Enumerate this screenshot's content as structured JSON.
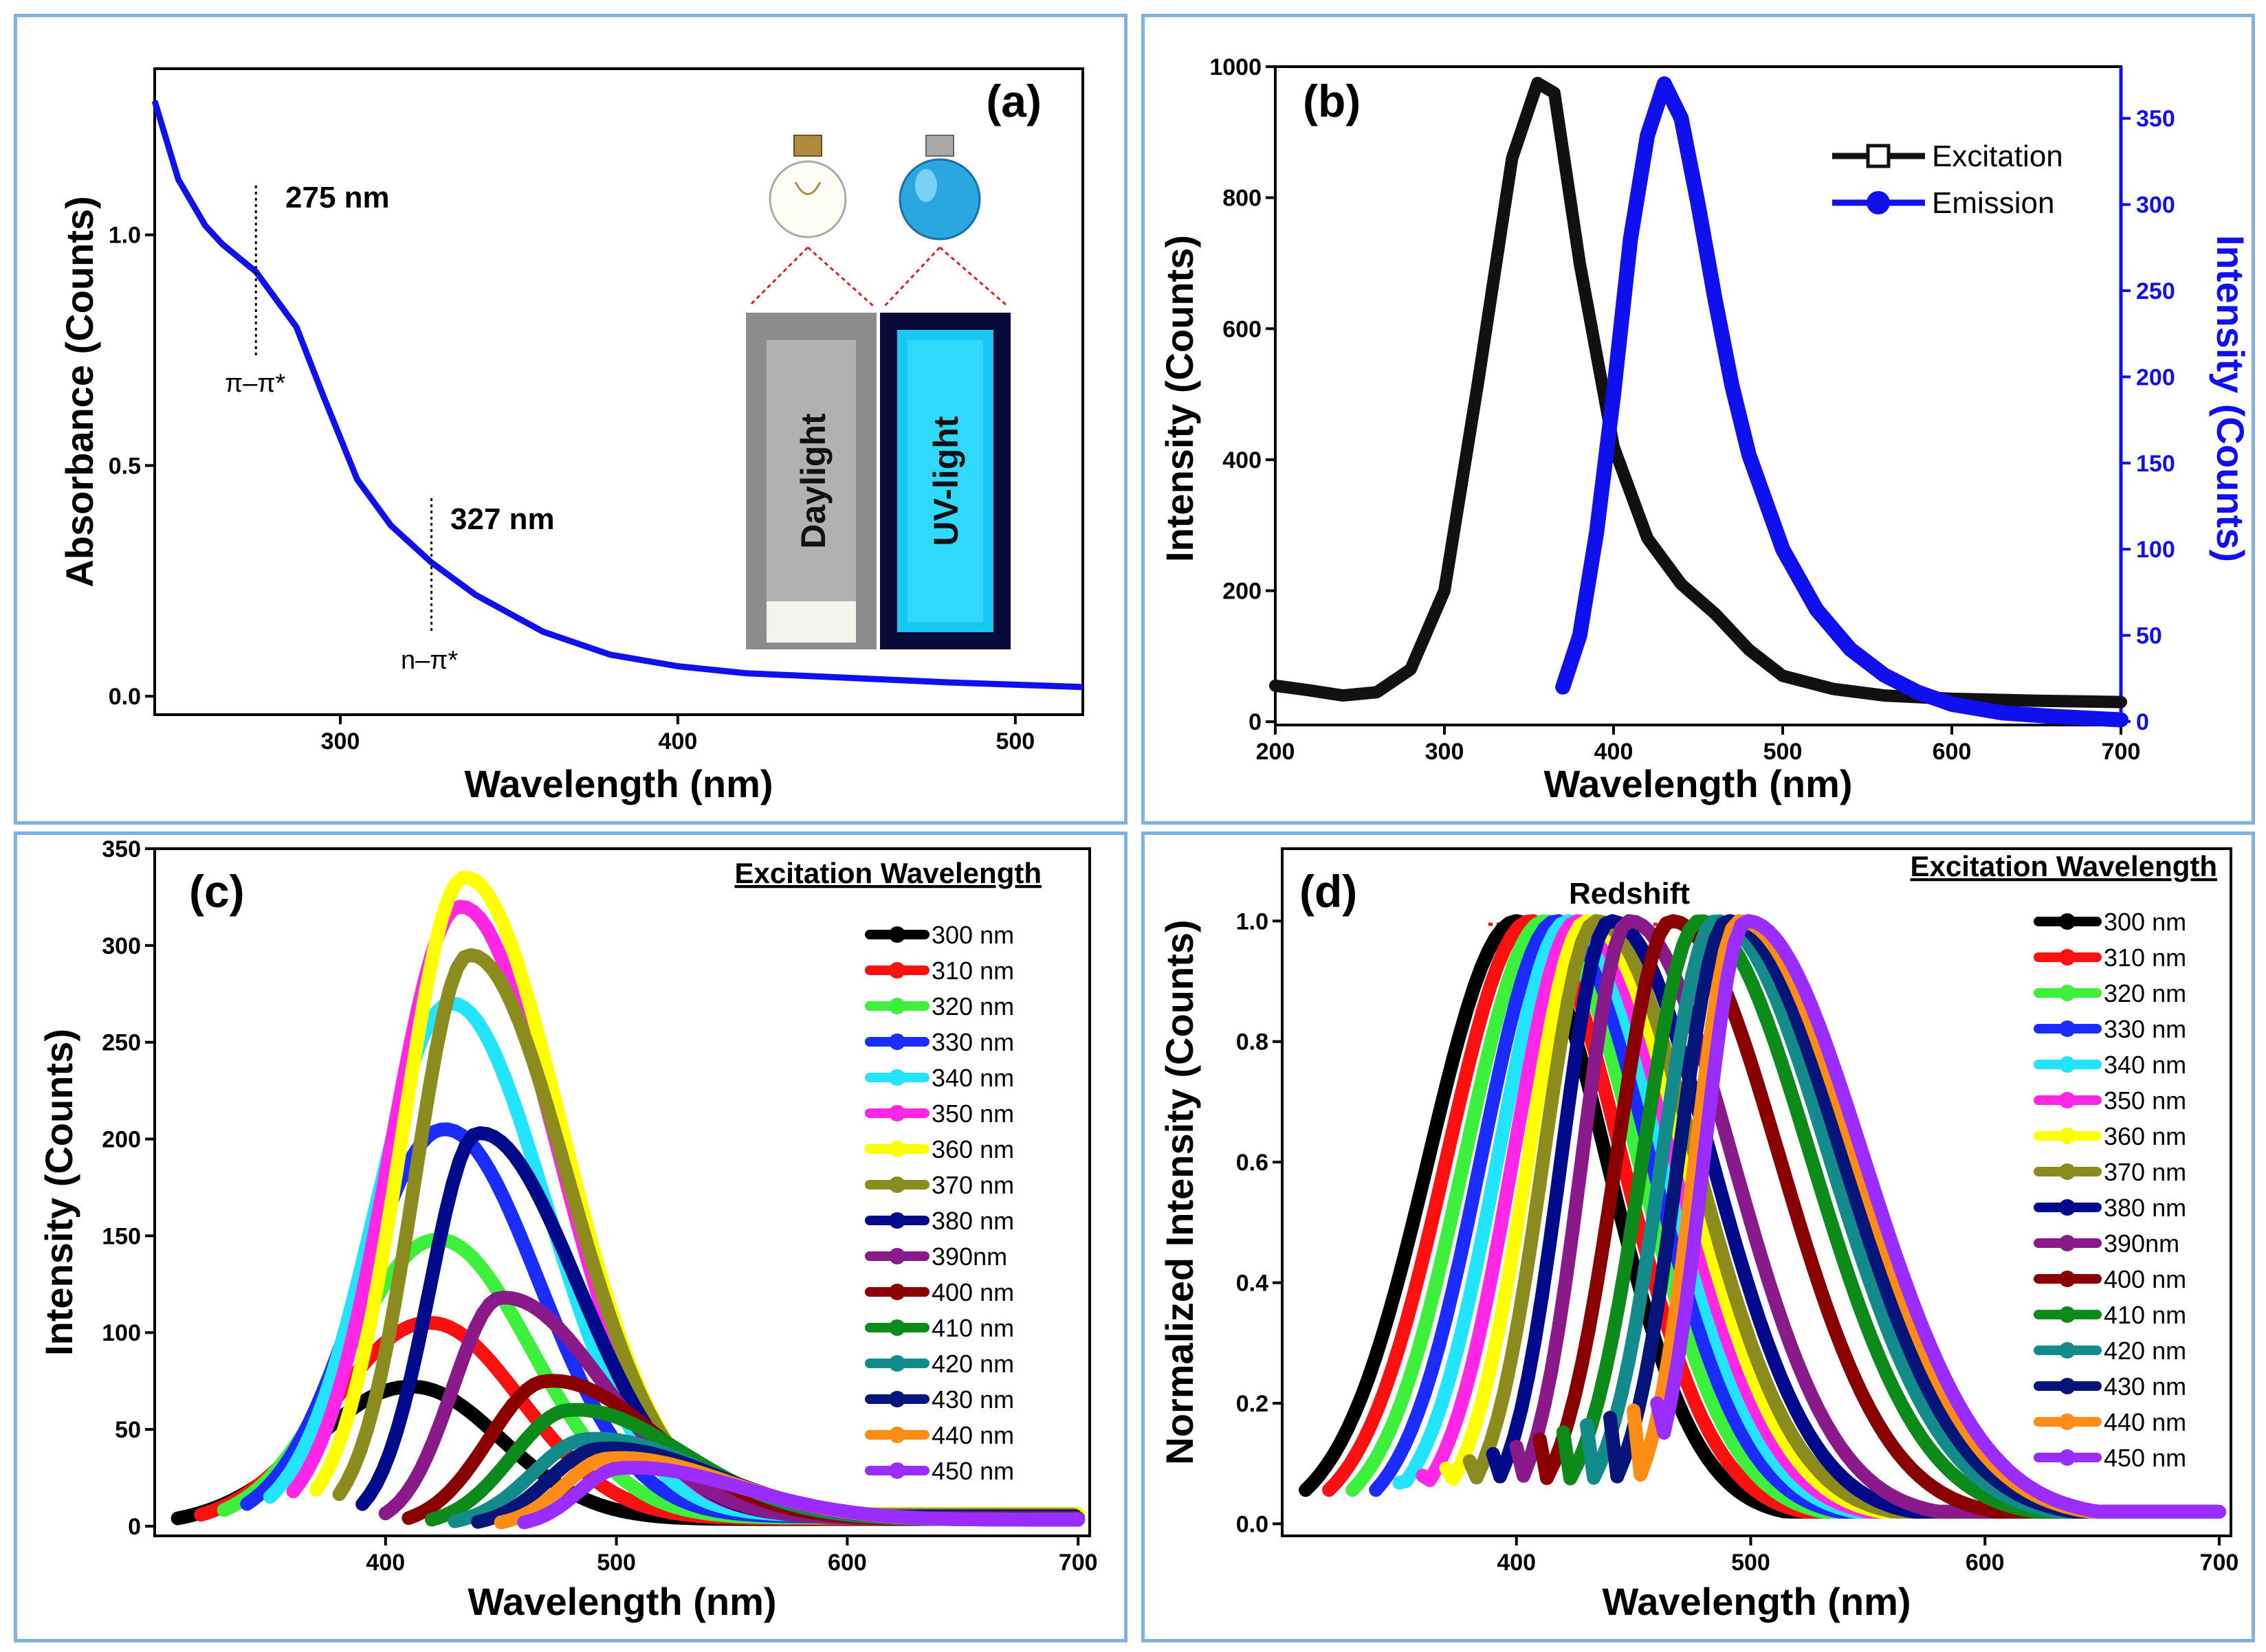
{
  "chart_data": [
    {
      "panel": "a",
      "type": "line",
      "panel_label": "(a)",
      "xlabel": "Wavelength (nm)",
      "ylabel": "Absorbance (Counts)",
      "xlim": [
        245,
        520
      ],
      "ylim": [
        -0.04,
        1.36
      ],
      "xticks": [
        300,
        400,
        500
      ],
      "yticks": [
        0.0,
        0.5,
        1.0
      ],
      "ytick_labels": [
        "0.0",
        "0.5",
        "1.0"
      ],
      "color": "#1010ee",
      "x": [
        245,
        252,
        260,
        265,
        270,
        275,
        280,
        287,
        295,
        305,
        315,
        327,
        340,
        360,
        380,
        400,
        420,
        450,
        480,
        520
      ],
      "y": [
        1.29,
        1.12,
        1.02,
        0.98,
        0.95,
        0.92,
        0.87,
        0.8,
        0.65,
        0.47,
        0.37,
        0.29,
        0.22,
        0.14,
        0.09,
        0.065,
        0.05,
        0.04,
        0.03,
        0.02
      ],
      "annotations": [
        {
          "x": 275,
          "label": "275 nm",
          "transition": "π–π*"
        },
        {
          "x": 327,
          "label": "327 nm",
          "transition": "n–π*"
        }
      ],
      "inset": {
        "left_label": "Daylight",
        "right_label": "UV-light"
      }
    },
    {
      "panel": "b",
      "type": "line",
      "panel_label": "(b)",
      "xlabel": "Wavelength (nm)",
      "ylabel": "Intensity (Counts)",
      "ylabel_right": "Intensity (Counts)",
      "xlim": [
        200,
        700
      ],
      "ylim": [
        -5,
        1000
      ],
      "ylim_right": [
        -2,
        380
      ],
      "xticks": [
        200,
        300,
        400,
        500,
        600,
        700
      ],
      "yticks": [
        0,
        200,
        400,
        600,
        800,
        1000
      ],
      "yticks_right": [
        0,
        50,
        100,
        150,
        200,
        250,
        300,
        350
      ],
      "series": [
        {
          "name": "Excitation",
          "axis": "left",
          "color": "#111111",
          "x": [
            200,
            220,
            240,
            260,
            280,
            300,
            320,
            340,
            355,
            365,
            380,
            400,
            420,
            440,
            460,
            480,
            500,
            530,
            560,
            600,
            650,
            700
          ],
          "y": [
            55,
            48,
            40,
            45,
            80,
            200,
            520,
            860,
            975,
            960,
            700,
            420,
            280,
            210,
            165,
            110,
            70,
            50,
            40,
            35,
            32,
            30
          ]
        },
        {
          "name": "Emission",
          "axis": "right",
          "color": "#1010ee",
          "x": [
            370,
            380,
            390,
            400,
            410,
            420,
            430,
            440,
            450,
            460,
            470,
            480,
            500,
            520,
            540,
            560,
            580,
            600,
            630,
            660,
            700
          ],
          "y": [
            20,
            50,
            110,
            190,
            280,
            340,
            370,
            350,
            300,
            245,
            195,
            155,
            100,
            65,
            42,
            27,
            17,
            10,
            5,
            3,
            1
          ]
        }
      ],
      "legend": [
        "Excitation",
        "Emission"
      ]
    },
    {
      "panel": "c",
      "type": "line",
      "panel_label": "(c)",
      "xlabel": "Wavelength (nm)",
      "ylabel": "Intensity (Counts)",
      "xlim": [
        300,
        705
      ],
      "ylim": [
        -5,
        350
      ],
      "xticks": [
        400,
        500,
        600,
        700
      ],
      "yticks": [
        0,
        50,
        100,
        150,
        200,
        250,
        300,
        350
      ],
      "legend_title": "Excitation Wavelength",
      "series": [
        {
          "name": "300 nm",
          "color": "#000000",
          "start": 310,
          "peak_x": 410,
          "peak": 72
        },
        {
          "name": "310 nm",
          "color": "#ff1010",
          "start": 320,
          "peak_x": 418,
          "peak": 105
        },
        {
          "name": "320 nm",
          "color": "#3cf03c",
          "start": 330,
          "peak_x": 422,
          "peak": 148
        },
        {
          "name": "330 nm",
          "color": "#1a2cff",
          "start": 340,
          "peak_x": 425,
          "peak": 205
        },
        {
          "name": "340 nm",
          "color": "#22e4ff",
          "start": 350,
          "peak_x": 428,
          "peak": 270
        },
        {
          "name": "350 nm",
          "color": "#ff26e6",
          "start": 360,
          "peak_x": 432,
          "peak": 320
        },
        {
          "name": "360 nm",
          "color": "#ffff00",
          "start": 370,
          "peak_x": 434,
          "peak": 335
        },
        {
          "name": "370 nm",
          "color": "#8b8b1e",
          "start": 380,
          "peak_x": 436,
          "peak": 295
        },
        {
          "name": "380 nm",
          "color": "#000a8a",
          "start": 390,
          "peak_x": 440,
          "peak": 203
        },
        {
          "name": "390nm",
          "color": "#8a1a8a",
          "start": 400,
          "peak_x": 450,
          "peak": 118
        },
        {
          "name": "400 nm",
          "color": "#8a0000",
          "start": 410,
          "peak_x": 470,
          "peak": 75
        },
        {
          "name": "410 nm",
          "color": "#0c8a1a",
          "start": 420,
          "peak_x": 480,
          "peak": 60
        },
        {
          "name": "420 nm",
          "color": "#138b8b",
          "start": 430,
          "peak_x": 488,
          "peak": 45
        },
        {
          "name": "430 nm",
          "color": "#06157a",
          "start": 440,
          "peak_x": 493,
          "peak": 40
        },
        {
          "name": "440 nm",
          "color": "#ff8c14",
          "start": 450,
          "peak_x": 497,
          "peak": 35
        },
        {
          "name": "450 nm",
          "color": "#9b2cff",
          "start": 460,
          "peak_x": 502,
          "peak": 30
        }
      ]
    },
    {
      "panel": "d",
      "type": "line",
      "panel_label": "(d)",
      "xlabel": "Wavelength (nm)",
      "ylabel": "Normalized Intensity (Counts)",
      "xlim": [
        300,
        705
      ],
      "ylim": [
        -0.02,
        1.12
      ],
      "xticks": [
        400,
        500,
        600,
        700
      ],
      "yticks": [
        0.0,
        0.2,
        0.4,
        0.6,
        0.8,
        1.0
      ],
      "ytick_labels": [
        "0.0",
        "0.2",
        "0.4",
        "0.6",
        "0.8",
        "1.0"
      ],
      "legend_title": "Excitation Wavelength",
      "redshift_label": "Redshift",
      "series": [
        {
          "name": "300 nm",
          "color": "#000000",
          "start": 310,
          "peak_x": 400
        },
        {
          "name": "310 nm",
          "color": "#ff1010",
          "start": 320,
          "peak_x": 406
        },
        {
          "name": "320 nm",
          "color": "#3cf03c",
          "start": 330,
          "peak_x": 412
        },
        {
          "name": "330 nm",
          "color": "#1a2cff",
          "start": 340,
          "peak_x": 417
        },
        {
          "name": "340 nm",
          "color": "#22e4ff",
          "start": 350,
          "peak_x": 422
        },
        {
          "name": "350 nm",
          "color": "#ff26e6",
          "start": 360,
          "peak_x": 426
        },
        {
          "name": "360 nm",
          "color": "#ffff00",
          "start": 370,
          "peak_x": 430
        },
        {
          "name": "370 nm",
          "color": "#8b8b1e",
          "start": 380,
          "peak_x": 434
        },
        {
          "name": "380 nm",
          "color": "#000a8a",
          "start": 390,
          "peak_x": 440
        },
        {
          "name": "390nm",
          "color": "#8a1a8a",
          "start": 400,
          "peak_x": 448
        },
        {
          "name": "400 nm",
          "color": "#8a0000",
          "start": 410,
          "peak_x": 466
        },
        {
          "name": "410 nm",
          "color": "#0c8a1a",
          "start": 420,
          "peak_x": 478
        },
        {
          "name": "420 nm",
          "color": "#138b8b",
          "start": 430,
          "peak_x": 485
        },
        {
          "name": "430 nm",
          "color": "#06157a",
          "start": 440,
          "peak_x": 490
        },
        {
          "name": "440 nm",
          "color": "#ff8c14",
          "start": 450,
          "peak_x": 495
        },
        {
          "name": "450 nm",
          "color": "#9b2cff",
          "start": 460,
          "peak_x": 498
        }
      ]
    }
  ]
}
